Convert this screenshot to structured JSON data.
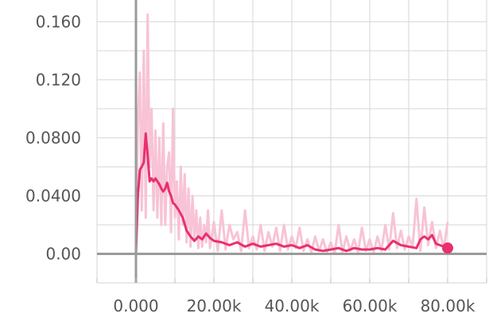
{
  "chart_data": {
    "type": "line",
    "title": "",
    "xlabel": "",
    "ylabel": "",
    "xlim": [
      -10000,
      90000
    ],
    "ylim": [
      -0.02,
      0.175
    ],
    "x_ticks": [
      0,
      20000,
      40000,
      60000,
      80000
    ],
    "x_tick_labels": [
      "0.000",
      "20.00k",
      "40.00k",
      "60.00k",
      "80.00k"
    ],
    "y_ticks": [
      0,
      0.04,
      0.08,
      0.12,
      0.16
    ],
    "y_tick_labels": [
      "0.00",
      "0.0400",
      "0.0800",
      "0.120",
      "0.160"
    ],
    "grid": true,
    "colors": {
      "smoothed": "#e8306e",
      "raw": "#f8c3d6",
      "axis": "#9a9a9a",
      "grid": "#d6d6d6"
    },
    "series": [
      {
        "role": "raw",
        "x": [
          0,
          500,
          1000,
          1500,
          2000,
          2500,
          3000,
          3500,
          4000,
          4500,
          5000,
          5500,
          6000,
          6500,
          7000,
          7500,
          8000,
          8500,
          9000,
          9500,
          10000,
          10500,
          11000,
          11500,
          12000,
          12500,
          13000,
          13500,
          14000,
          14500,
          15000,
          15500,
          16000,
          16500,
          17000,
          17500,
          18000,
          18500,
          19000,
          20000,
          21000,
          22000,
          23000,
          24000,
          25000,
          26000,
          27000,
          28000,
          29000,
          30000,
          31000,
          32000,
          33000,
          34000,
          35000,
          36000,
          37000,
          38000,
          39000,
          40000,
          41000,
          42000,
          43000,
          44000,
          45000,
          46000,
          47000,
          48000,
          49000,
          50000,
          51000,
          52000,
          53000,
          54000,
          55000,
          56000,
          57000,
          58000,
          59000,
          60000,
          61000,
          62000,
          63000,
          64000,
          65000,
          66000,
          67000,
          68000,
          69000,
          70000,
          71000,
          72000,
          73000,
          74000,
          75000,
          76000,
          77000,
          78000,
          79000,
          80000
        ],
        "y": [
          0.005,
          0.09,
          0.125,
          0.03,
          0.14,
          0.025,
          0.165,
          0.06,
          0.1,
          0.03,
          0.085,
          0.025,
          0.08,
          0.02,
          0.09,
          0.02,
          0.06,
          0.07,
          0.015,
          0.1,
          0.025,
          0.05,
          0.01,
          0.06,
          0.02,
          0.055,
          0.008,
          0.045,
          0.005,
          0.04,
          0.01,
          0.03,
          0.004,
          0.025,
          0.005,
          0.02,
          0.008,
          0.03,
          0.004,
          0.022,
          0.002,
          0.03,
          0.003,
          0.02,
          0.01,
          0.015,
          0.002,
          0.03,
          0.004,
          0.012,
          0.003,
          0.02,
          0.002,
          0.015,
          0.005,
          0.018,
          0.002,
          0.02,
          0.003,
          0.012,
          0.004,
          0.018,
          0.002,
          0.01,
          0.001,
          0.012,
          0.002,
          0.01,
          0.001,
          0.008,
          0.0,
          0.02,
          0.001,
          0.012,
          0.002,
          0.01,
          0.001,
          0.018,
          0.002,
          0.01,
          0.001,
          0.012,
          0.002,
          0.02,
          0.003,
          0.028,
          0.004,
          0.016,
          0.003,
          0.012,
          0.005,
          0.038,
          0.002,
          0.032,
          0.006,
          0.022,
          0.004,
          0.016,
          0.003,
          0.022
        ]
      },
      {
        "role": "smoothed",
        "x": [
          0,
          500,
          1000,
          1500,
          2000,
          2500,
          3000,
          3500,
          4000,
          4500,
          5000,
          5500,
          6000,
          6500,
          7000,
          7500,
          8000,
          8500,
          9000,
          9500,
          10000,
          11000,
          12000,
          13000,
          14000,
          15000,
          16000,
          17000,
          18000,
          19000,
          20000,
          22000,
          24000,
          26000,
          28000,
          30000,
          32000,
          34000,
          36000,
          38000,
          40000,
          42000,
          44000,
          46000,
          48000,
          50000,
          52000,
          54000,
          56000,
          58000,
          60000,
          62000,
          64000,
          65000,
          66000,
          68000,
          70000,
          72000,
          73000,
          74000,
          75000,
          76000,
          77000,
          78000,
          80000
        ],
        "y": [
          0.0,
          0.04,
          0.058,
          0.06,
          0.063,
          0.083,
          0.068,
          0.05,
          0.052,
          0.05,
          0.052,
          0.05,
          0.048,
          0.045,
          0.043,
          0.045,
          0.049,
          0.043,
          0.04,
          0.035,
          0.034,
          0.03,
          0.025,
          0.016,
          0.012,
          0.009,
          0.012,
          0.01,
          0.014,
          0.011,
          0.009,
          0.008,
          0.006,
          0.008,
          0.005,
          0.007,
          0.005,
          0.006,
          0.007,
          0.005,
          0.006,
          0.004,
          0.006,
          0.003,
          0.002,
          0.003,
          0.004,
          0.002,
          0.004,
          0.003,
          0.003,
          0.004,
          0.003,
          0.006,
          0.009,
          0.006,
          0.005,
          0.004,
          0.01,
          0.012,
          0.01,
          0.013,
          0.007,
          0.006,
          0.004
        ]
      }
    ],
    "end_marker": {
      "x": 80000,
      "y": 0.004
    }
  }
}
